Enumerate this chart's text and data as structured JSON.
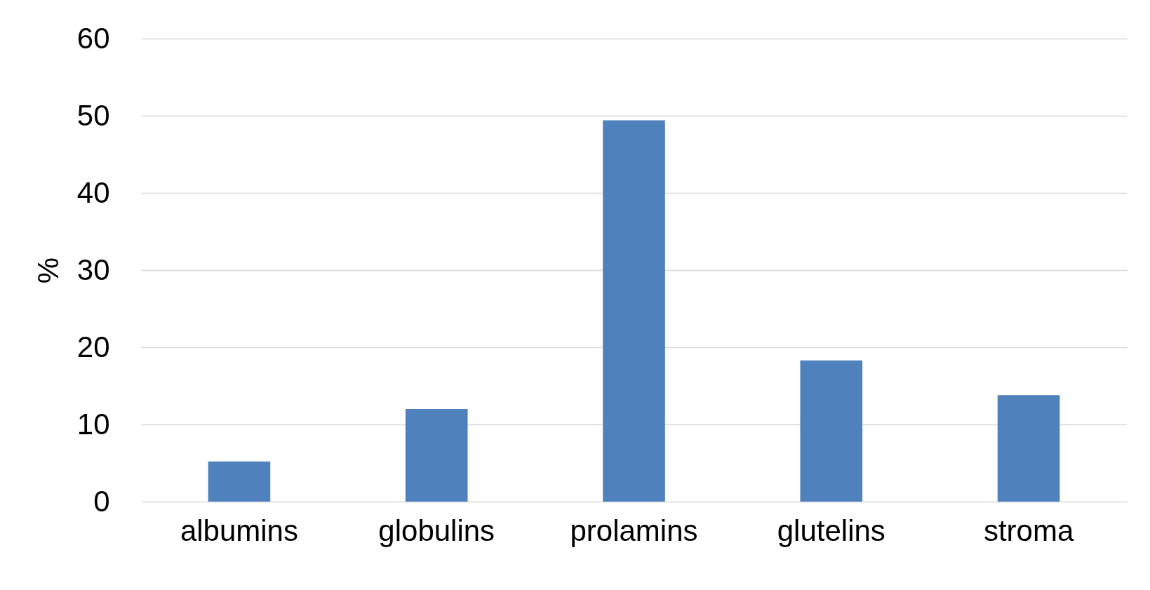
{
  "chart_data": {
    "type": "bar",
    "ylabel": "%",
    "categories": [
      "albumins",
      "globulins",
      "prolamins",
      "glutelins",
      "stroma"
    ],
    "values": [
      5.2,
      12.0,
      49.4,
      18.3,
      13.8
    ],
    "color": "#4f81bd",
    "ylim": [
      0,
      60
    ],
    "yticks": [
      0,
      10,
      20,
      30,
      40,
      50,
      60
    ],
    "grid": "y"
  }
}
